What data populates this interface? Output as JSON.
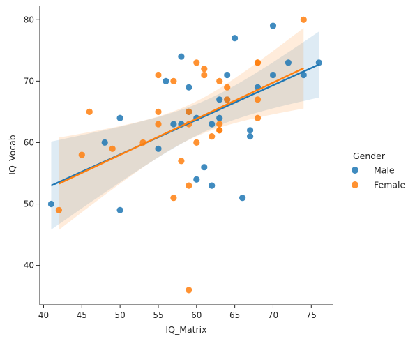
{
  "chart_data": {
    "type": "scatter",
    "xlabel": "IQ_Matrix",
    "ylabel": "IQ_Vocab",
    "xlim": [
      39.5,
      77.8
    ],
    "ylim": [
      33.6,
      82.3
    ],
    "xticks": [
      40,
      45,
      50,
      55,
      60,
      65,
      70,
      75
    ],
    "yticks": [
      40,
      50,
      60,
      70,
      80
    ],
    "grid": false,
    "legend": {
      "title": "Gender",
      "placement": "right"
    },
    "series": [
      {
        "name": "Male",
        "color": "#1f77b4",
        "points": [
          [
            41,
            50
          ],
          [
            48,
            60
          ],
          [
            50,
            64
          ],
          [
            50,
            49
          ],
          [
            55,
            59
          ],
          [
            56,
            70
          ],
          [
            57,
            63
          ],
          [
            58,
            74
          ],
          [
            58,
            63
          ],
          [
            59,
            69
          ],
          [
            59,
            65
          ],
          [
            60,
            64
          ],
          [
            60,
            54
          ],
          [
            61,
            56
          ],
          [
            62,
            63
          ],
          [
            62,
            53
          ],
          [
            63,
            67
          ],
          [
            63,
            64
          ],
          [
            64,
            71
          ],
          [
            64,
            67
          ],
          [
            65,
            77
          ],
          [
            66,
            51
          ],
          [
            67,
            62
          ],
          [
            67,
            61
          ],
          [
            68,
            69
          ],
          [
            70,
            79
          ],
          [
            70,
            71
          ],
          [
            72,
            73
          ],
          [
            74,
            71
          ],
          [
            76,
            73
          ]
        ],
        "fit": {
          "x": [
            41,
            76
          ],
          "y": [
            53.0,
            72.7
          ]
        }
      },
      {
        "name": "Female",
        "color": "#ff7f0e",
        "points": [
          [
            42,
            49
          ],
          [
            45,
            58
          ],
          [
            46,
            65
          ],
          [
            49,
            59
          ],
          [
            53,
            60
          ],
          [
            55,
            71
          ],
          [
            55,
            65
          ],
          [
            55,
            63
          ],
          [
            57,
            70
          ],
          [
            57,
            51
          ],
          [
            58,
            57
          ],
          [
            59,
            65
          ],
          [
            59,
            63
          ],
          [
            59,
            53
          ],
          [
            59,
            36
          ],
          [
            60,
            73
          ],
          [
            60,
            60
          ],
          [
            61,
            72
          ],
          [
            61,
            71
          ],
          [
            62,
            61
          ],
          [
            63,
            70
          ],
          [
            63,
            63
          ],
          [
            63,
            62
          ],
          [
            63,
            62
          ],
          [
            64,
            69
          ],
          [
            64,
            67
          ],
          [
            68,
            73
          ],
          [
            68,
            73
          ],
          [
            68,
            67
          ],
          [
            68,
            64
          ],
          [
            74,
            80
          ]
        ],
        "fit": {
          "x": [
            42,
            74
          ],
          "y": [
            53.3,
            72.1
          ]
        }
      }
    ]
  }
}
